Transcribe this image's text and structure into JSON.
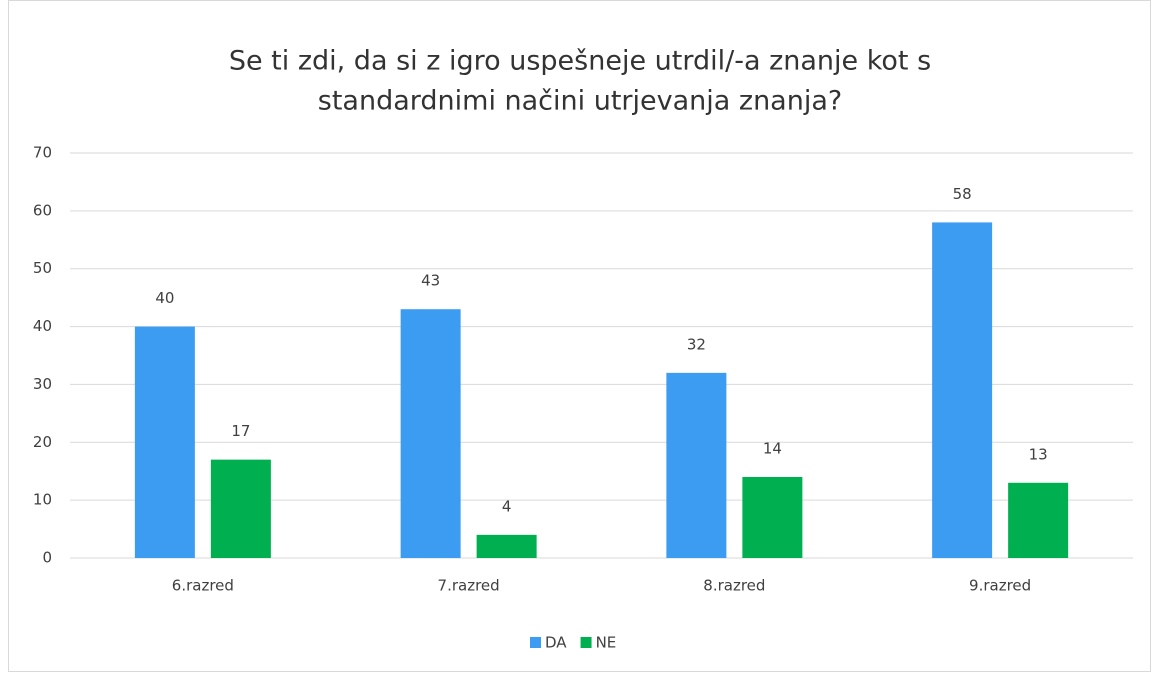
{
  "chart_data": {
    "type": "bar",
    "title": [
      "Se ti zdi, da si z igro uspešneje utrdil/-a znanje kot s",
      "standardnimi načini utrjevanja znanja?"
    ],
    "categories": [
      "6.razred",
      "7.razred",
      "8.razred",
      "9.razred"
    ],
    "series": [
      {
        "name": "DA",
        "color": "#3c9cf2",
        "values": [
          40,
          43,
          32,
          58
        ]
      },
      {
        "name": "NE",
        "color": "#00b050",
        "values": [
          17,
          4,
          14,
          13
        ]
      }
    ],
    "ylim": [
      0,
      70
    ],
    "yticks": [
      0,
      10,
      20,
      30,
      40,
      50,
      60,
      70
    ],
    "grid": true,
    "legend": "bottom"
  }
}
